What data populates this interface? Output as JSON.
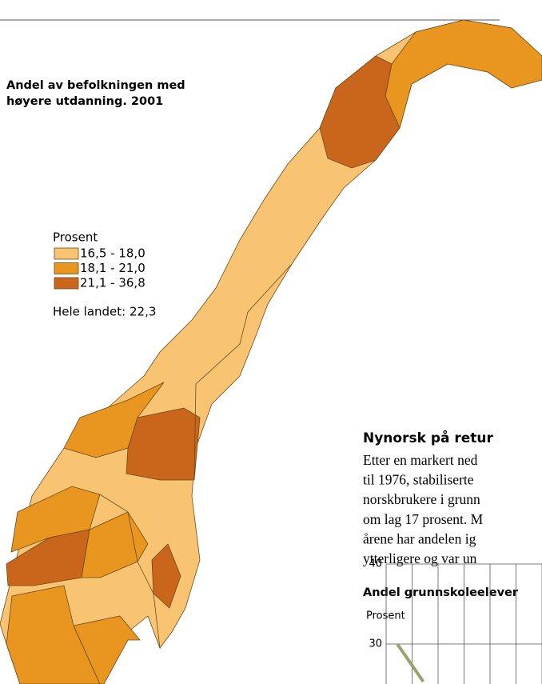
{
  "map": {
    "title_lines": [
      "Andel av befolkningen med",
      "høyere utdanning. 2001"
    ],
    "legend": {
      "title": "Prosent",
      "items": [
        {
          "label": "16,5 - 18,0",
          "color": "#f8c472"
        },
        {
          "label": "18,1 - 21,0",
          "color": "#e8961f"
        },
        {
          "label": "21,1 - 36,8",
          "color": "#c9661b"
        }
      ],
      "note": "Hele landet: 22,3"
    }
  },
  "article": {
    "heading": "Nynorsk på retur",
    "lines": [
      "Etter en markert ned",
      "til 1976, stabiliserte",
      "norskbrukere i grunn",
      "om lag 17 prosent. M",
      "årene har andelen ig",
      "ytterligere og var un"
    ]
  },
  "chart_data": {
    "type": "line",
    "title": "Andel grunnskoleelever",
    "y_label": "Prosent",
    "categories": [
      null,
      null
    ],
    "series": [
      {
        "color": "#9aa36a",
        "values": [
          30,
          25.3
        ]
      }
    ],
    "ylim": [
      0,
      40
    ],
    "yticks": [
      30,
      40
    ],
    "grid": true
  }
}
